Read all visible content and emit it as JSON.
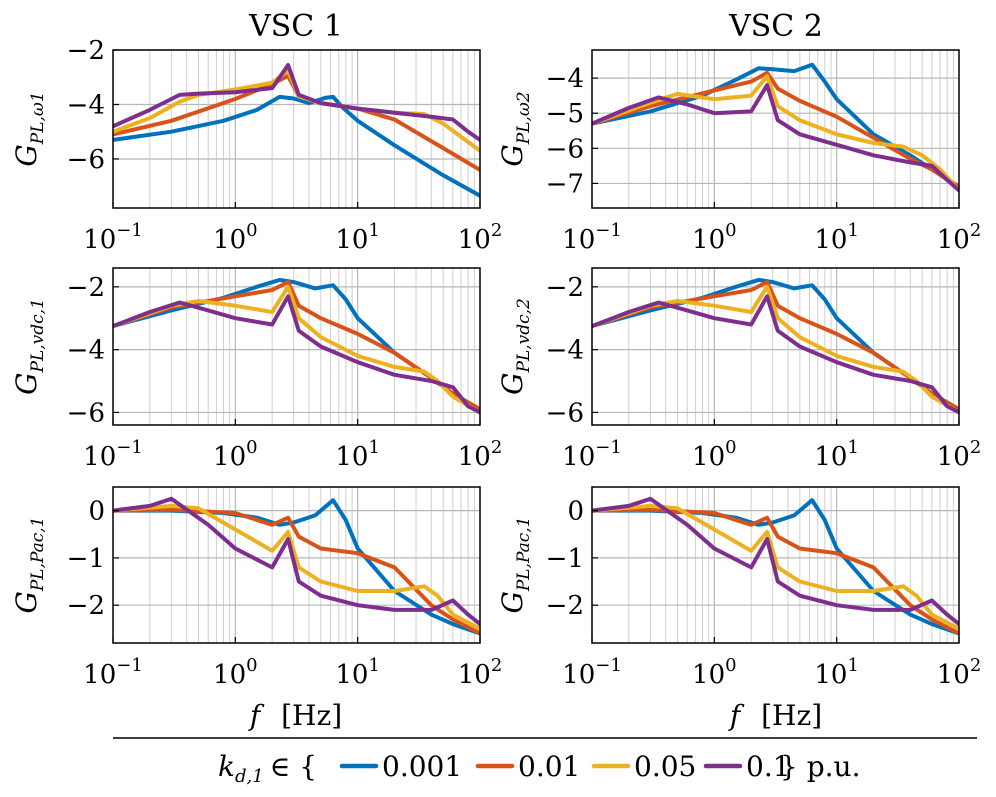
{
  "figure": {
    "col_titles": [
      "VSC 1",
      "VSC 2"
    ],
    "xlabel_f": "f",
    "xlabel_unit": "[Hz]",
    "legend_prefix": "k",
    "legend_sub": "d,1",
    "legend_in": "∈ {",
    "legend_suffix": "} p.u.",
    "colors": [
      "#0072BD",
      "#D95319",
      "#EDB120",
      "#7E2F8E"
    ]
  },
  "chart_data": {
    "type": "line",
    "x_scale": "log",
    "xlim": [
      0.1,
      100
    ],
    "x_ticks": [
      {
        "value": 0.1,
        "base": "10",
        "exp": "−1"
      },
      {
        "value": 1,
        "base": "10",
        "exp": "0"
      },
      {
        "value": 10,
        "base": "10",
        "exp": "1"
      },
      {
        "value": 100,
        "base": "10",
        "exp": "2"
      }
    ],
    "grid": true,
    "legend": {
      "position": "bottom",
      "labels": [
        "0.001",
        "0.01",
        "0.05",
        "0.1"
      ]
    },
    "panels": [
      {
        "id": "vsc1-omega",
        "ylabel_main": "G",
        "ylabel_sub": "PL,ω1",
        "ylim": [
          -7.8,
          -2
        ],
        "yticks": [
          -2,
          -4,
          -6
        ],
        "ytick_labels": [
          "−2",
          "−4",
          "−6"
        ],
        "series": [
          {
            "name": "0.001",
            "x": [
              0.1,
              0.3,
              0.8,
              1.5,
              2.3,
              3.0,
              4.0,
              5.5,
              6.3,
              7.5,
              10,
              20,
              50,
              100
            ],
            "y": [
              -5.3,
              -5.0,
              -4.6,
              -4.2,
              -3.72,
              -3.78,
              -3.95,
              -3.75,
              -3.72,
              -4.1,
              -4.6,
              -5.5,
              -6.6,
              -7.35
            ]
          },
          {
            "name": "0.01",
            "x": [
              0.1,
              0.3,
              1.0,
              2.0,
              2.7,
              3.3,
              5,
              10,
              20,
              50,
              100
            ],
            "y": [
              -5.1,
              -4.6,
              -3.8,
              -3.25,
              -2.95,
              -3.7,
              -3.95,
              -4.15,
              -4.55,
              -5.6,
              -6.4
            ]
          },
          {
            "name": "0.05",
            "x": [
              0.1,
              0.2,
              0.35,
              0.5,
              1.0,
              2.0,
              2.7,
              3.3,
              5,
              10,
              20,
              35,
              50,
              100
            ],
            "y": [
              -5.0,
              -4.5,
              -3.9,
              -3.65,
              -3.45,
              -3.2,
              -2.75,
              -3.7,
              -3.95,
              -4.15,
              -4.3,
              -4.35,
              -4.7,
              -5.7
            ]
          },
          {
            "name": "0.1",
            "x": [
              0.1,
              0.2,
              0.35,
              0.5,
              1.0,
              2.0,
              2.7,
              3.3,
              5,
              10,
              20,
              40,
              60,
              80,
              100
            ],
            "y": [
              -4.8,
              -4.2,
              -3.65,
              -3.6,
              -3.55,
              -3.4,
              -2.55,
              -3.65,
              -3.95,
              -4.15,
              -4.3,
              -4.45,
              -4.55,
              -5.0,
              -5.3
            ]
          }
        ]
      },
      {
        "id": "vsc2-omega",
        "ylabel_main": "G",
        "ylabel_sub": "PL,ω2",
        "ylim": [
          -7.7,
          -3.2
        ],
        "yticks": [
          -4,
          -5,
          -6,
          -7
        ],
        "ytick_labels": [
          "−4",
          "−5",
          "−6",
          "−7"
        ],
        "series": [
          {
            "name": "0.001",
            "x": [
              0.1,
              0.3,
              0.8,
              1.5,
              2.3,
              3.0,
              4.5,
              6.3,
              8,
              10,
              20,
              40,
              60,
              100
            ],
            "y": [
              -5.3,
              -4.95,
              -4.5,
              -4.05,
              -3.72,
              -3.75,
              -3.8,
              -3.62,
              -4.1,
              -4.6,
              -5.6,
              -6.2,
              -6.6,
              -7.1
            ]
          },
          {
            "name": "0.01",
            "x": [
              0.1,
              0.3,
              1.0,
              2.0,
              2.7,
              3.3,
              5,
              10,
              20,
              40,
              60,
              100
            ],
            "y": [
              -5.3,
              -4.8,
              -4.35,
              -4.1,
              -3.85,
              -4.3,
              -4.65,
              -5.1,
              -5.7,
              -6.3,
              -6.6,
              -7.1
            ]
          },
          {
            "name": "0.05",
            "x": [
              0.1,
              0.3,
              0.5,
              1.0,
              2.0,
              2.7,
              3.3,
              5,
              10,
              20,
              35,
              50,
              70,
              100
            ],
            "y": [
              -5.3,
              -4.7,
              -4.45,
              -4.6,
              -4.5,
              -3.95,
              -4.8,
              -5.2,
              -5.6,
              -5.85,
              -5.95,
              -6.2,
              -6.6,
              -7.2
            ]
          },
          {
            "name": "0.1",
            "x": [
              0.1,
              0.2,
              0.35,
              0.6,
              1.0,
              2.0,
              2.7,
              3.3,
              5,
              10,
              20,
              40,
              60,
              80,
              100
            ],
            "y": [
              -5.3,
              -4.85,
              -4.55,
              -4.75,
              -5.0,
              -4.95,
              -4.2,
              -5.2,
              -5.6,
              -5.9,
              -6.2,
              -6.4,
              -6.5,
              -6.9,
              -7.2
            ]
          }
        ]
      },
      {
        "id": "vsc1-vdc",
        "ylabel_main": "G",
        "ylabel_sub": "PL,vdc,1",
        "ylim": [
          -6.4,
          -1.4
        ],
        "yticks": [
          -2,
          -4,
          -6
        ],
        "ytick_labels": [
          "−2",
          "−4",
          "−6"
        ],
        "series": [
          {
            "name": "0.001",
            "x": [
              0.1,
              0.3,
              0.8,
              1.5,
              2.3,
              3.0,
              4.5,
              6.3,
              8,
              10,
              20,
              40,
              60,
              100
            ],
            "y": [
              -3.25,
              -2.75,
              -2.35,
              -2.0,
              -1.78,
              -1.85,
              -2.05,
              -1.95,
              -2.4,
              -3.0,
              -4.1,
              -4.9,
              -5.4,
              -5.9
            ]
          },
          {
            "name": "0.01",
            "x": [
              0.1,
              0.3,
              1.0,
              2.0,
              2.7,
              3.3,
              5,
              10,
              20,
              40,
              60,
              100
            ],
            "y": [
              -3.25,
              -2.65,
              -2.3,
              -2.1,
              -1.85,
              -2.6,
              -3.0,
              -3.5,
              -4.1,
              -4.9,
              -5.4,
              -5.9
            ]
          },
          {
            "name": "0.05",
            "x": [
              0.1,
              0.3,
              0.5,
              1.0,
              2.0,
              2.7,
              3.3,
              5,
              10,
              20,
              35,
              45,
              60,
              100
            ],
            "y": [
              -3.25,
              -2.6,
              -2.45,
              -2.6,
              -2.8,
              -2.0,
              -3.0,
              -3.6,
              -4.2,
              -4.55,
              -4.7,
              -5.0,
              -5.5,
              -6.0
            ]
          },
          {
            "name": "0.1",
            "x": [
              0.1,
              0.2,
              0.35,
              0.6,
              1.0,
              2.0,
              2.7,
              3.3,
              5,
              10,
              20,
              40,
              60,
              80,
              100
            ],
            "y": [
              -3.25,
              -2.8,
              -2.5,
              -2.75,
              -3.0,
              -3.2,
              -2.3,
              -3.4,
              -3.9,
              -4.4,
              -4.8,
              -5.0,
              -5.2,
              -5.8,
              -6.0
            ]
          }
        ]
      },
      {
        "id": "vsc2-vdc",
        "ylabel_main": "G",
        "ylabel_sub": "PL,vdc,2",
        "ylim": [
          -6.4,
          -1.4
        ],
        "yticks": [
          -2,
          -4,
          -6
        ],
        "ytick_labels": [
          "−2",
          "−4",
          "−6"
        ],
        "series": [
          {
            "name": "0.001",
            "x": [
              0.1,
              0.3,
              0.8,
              1.5,
              2.3,
              3.0,
              4.5,
              6.3,
              8,
              10,
              20,
              40,
              60,
              100
            ],
            "y": [
              -3.25,
              -2.75,
              -2.35,
              -2.0,
              -1.78,
              -1.85,
              -2.05,
              -1.95,
              -2.4,
              -3.0,
              -4.1,
              -4.9,
              -5.4,
              -5.9
            ]
          },
          {
            "name": "0.01",
            "x": [
              0.1,
              0.3,
              1.0,
              2.0,
              2.7,
              3.3,
              5,
              10,
              20,
              40,
              60,
              100
            ],
            "y": [
              -3.25,
              -2.65,
              -2.3,
              -2.1,
              -1.85,
              -2.6,
              -3.0,
              -3.5,
              -4.1,
              -4.9,
              -5.4,
              -5.9
            ]
          },
          {
            "name": "0.05",
            "x": [
              0.1,
              0.3,
              0.5,
              1.0,
              2.0,
              2.7,
              3.3,
              5,
              10,
              20,
              35,
              45,
              60,
              100
            ],
            "y": [
              -3.25,
              -2.6,
              -2.45,
              -2.6,
              -2.8,
              -2.0,
              -3.0,
              -3.6,
              -4.2,
              -4.55,
              -4.7,
              -5.0,
              -5.5,
              -6.0
            ]
          },
          {
            "name": "0.1",
            "x": [
              0.1,
              0.2,
              0.35,
              0.6,
              1.0,
              2.0,
              2.7,
              3.3,
              5,
              10,
              20,
              40,
              60,
              80,
              100
            ],
            "y": [
              -3.25,
              -2.8,
              -2.5,
              -2.75,
              -3.0,
              -3.2,
              -2.3,
              -3.4,
              -3.9,
              -4.4,
              -4.8,
              -5.0,
              -5.2,
              -5.8,
              -6.0
            ]
          }
        ]
      },
      {
        "id": "vsc1-pac",
        "ylabel_main": "G",
        "ylabel_sub": "PL,Pac,1",
        "ylim": [
          -2.8,
          0.5
        ],
        "yticks": [
          0,
          -1,
          -2
        ],
        "ytick_labels": [
          "0",
          "−1",
          "−2"
        ],
        "series": [
          {
            "name": "0.001",
            "x": [
              0.1,
              0.3,
              0.8,
              1.5,
              2.3,
              3.0,
              4.5,
              6.3,
              8,
              10,
              20,
              40,
              60,
              100
            ],
            "y": [
              0.0,
              0.0,
              -0.05,
              -0.15,
              -0.3,
              -0.25,
              -0.1,
              0.22,
              -0.2,
              -0.8,
              -1.7,
              -2.2,
              -2.4,
              -2.6
            ]
          },
          {
            "name": "0.01",
            "x": [
              0.1,
              0.3,
              1.0,
              2.0,
              2.7,
              3.3,
              5,
              10,
              20,
              40,
              60,
              100
            ],
            "y": [
              0.0,
              0.02,
              -0.05,
              -0.3,
              -0.15,
              -0.55,
              -0.8,
              -0.9,
              -1.2,
              -2.0,
              -2.3,
              -2.6
            ]
          },
          {
            "name": "0.05",
            "x": [
              0.1,
              0.3,
              0.5,
              1.0,
              2.0,
              2.7,
              3.3,
              5,
              10,
              20,
              35,
              45,
              60,
              100
            ],
            "y": [
              0.0,
              0.1,
              0.05,
              -0.4,
              -0.85,
              -0.45,
              -1.2,
              -1.5,
              -1.7,
              -1.7,
              -1.6,
              -1.8,
              -2.2,
              -2.5
            ]
          },
          {
            "name": "0.1",
            "x": [
              0.1,
              0.2,
              0.3,
              0.6,
              1.0,
              2.0,
              2.7,
              3.3,
              5,
              10,
              20,
              40,
              60,
              80,
              100
            ],
            "y": [
              0.0,
              0.1,
              0.25,
              -0.3,
              -0.8,
              -1.2,
              -0.6,
              -1.5,
              -1.8,
              -2.0,
              -2.1,
              -2.1,
              -1.9,
              -2.2,
              -2.4
            ]
          }
        ]
      },
      {
        "id": "vsc2-pac",
        "ylabel_main": "G",
        "ylabel_sub": "PL,Pac,1",
        "ylim": [
          -2.8,
          0.5
        ],
        "yticks": [
          0,
          -1,
          -2
        ],
        "ytick_labels": [
          "0",
          "−1",
          "−2"
        ],
        "series": [
          {
            "name": "0.001",
            "x": [
              0.1,
              0.3,
              0.8,
              1.5,
              2.3,
              3.0,
              4.5,
              6.3,
              8,
              10,
              20,
              40,
              60,
              100
            ],
            "y": [
              0.0,
              0.0,
              -0.05,
              -0.15,
              -0.3,
              -0.25,
              -0.1,
              0.22,
              -0.2,
              -0.8,
              -1.7,
              -2.2,
              -2.4,
              -2.6
            ]
          },
          {
            "name": "0.01",
            "x": [
              0.1,
              0.3,
              1.0,
              2.0,
              2.7,
              3.3,
              5,
              10,
              20,
              40,
              60,
              100
            ],
            "y": [
              0.0,
              0.02,
              -0.05,
              -0.3,
              -0.15,
              -0.55,
              -0.8,
              -0.9,
              -1.2,
              -2.0,
              -2.3,
              -2.6
            ]
          },
          {
            "name": "0.05",
            "x": [
              0.1,
              0.3,
              0.5,
              1.0,
              2.0,
              2.7,
              3.3,
              5,
              10,
              20,
              35,
              45,
              60,
              100
            ],
            "y": [
              0.0,
              0.1,
              0.05,
              -0.4,
              -0.85,
              -0.45,
              -1.2,
              -1.5,
              -1.7,
              -1.7,
              -1.6,
              -1.8,
              -2.2,
              -2.5
            ]
          },
          {
            "name": "0.1",
            "x": [
              0.1,
              0.2,
              0.3,
              0.6,
              1.0,
              2.0,
              2.7,
              3.3,
              5,
              10,
              20,
              40,
              60,
              80,
              100
            ],
            "y": [
              0.0,
              0.1,
              0.25,
              -0.3,
              -0.8,
              -1.2,
              -0.6,
              -1.5,
              -1.8,
              -2.0,
              -2.1,
              -2.1,
              -1.9,
              -2.2,
              -2.4
            ]
          }
        ]
      }
    ]
  }
}
